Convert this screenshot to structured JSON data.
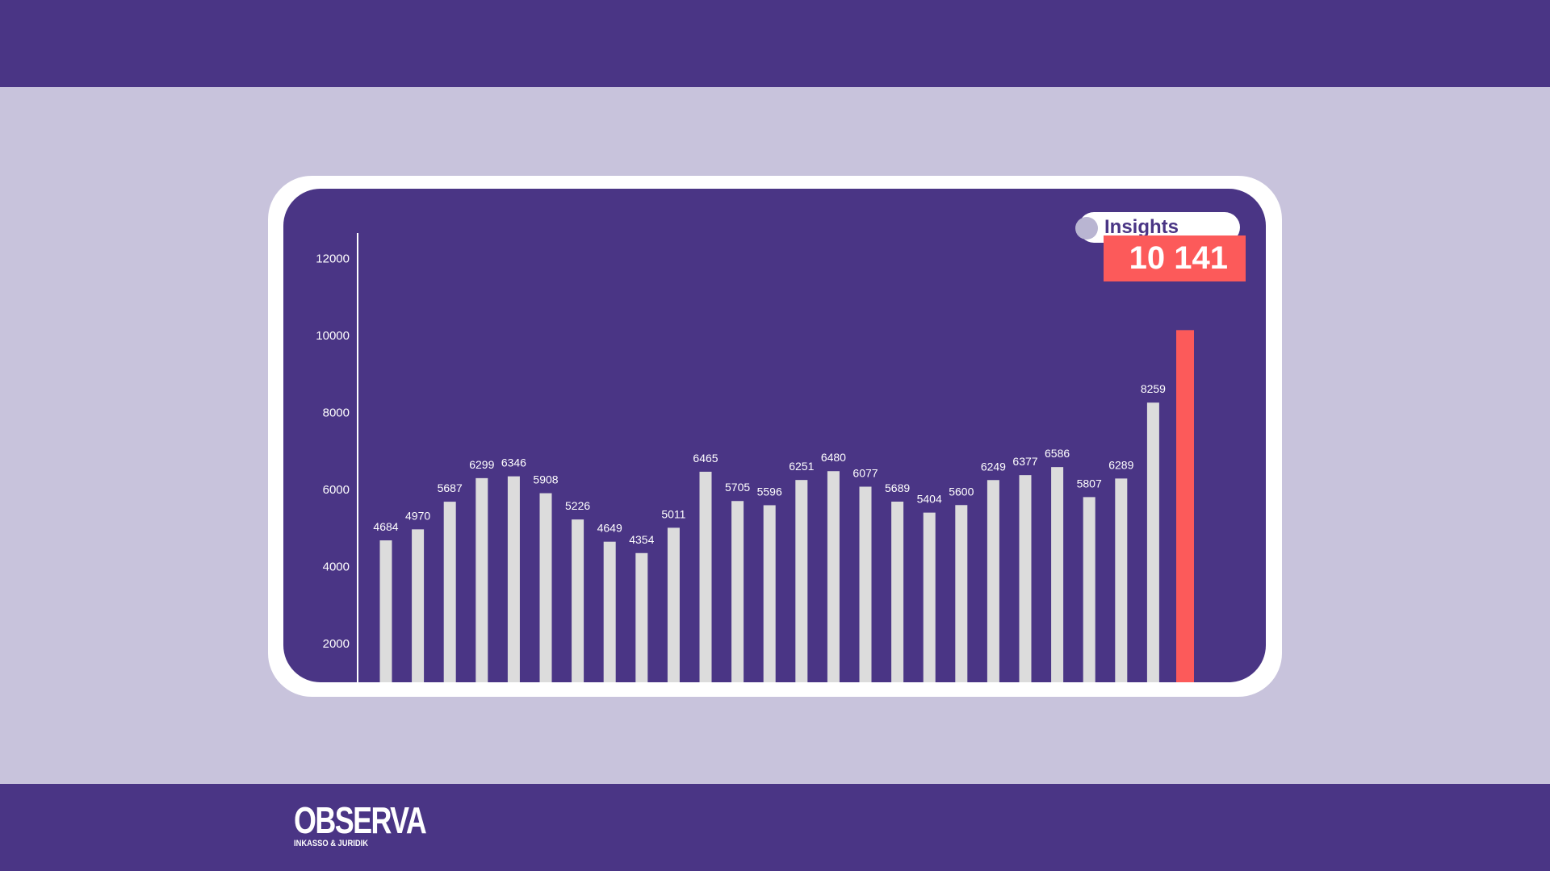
{
  "colors": {
    "band": "#4a3585",
    "background": "#c8c3dc",
    "card": "#ffffff",
    "plot_area": "#4a3585",
    "bar": "#dcdcdc",
    "highlight": "#fc5a5a",
    "text": "#ffffff"
  },
  "insights": {
    "label": "Insights",
    "value": "10 141"
  },
  "logo": {
    "name": "OBSERVA",
    "tagline": "INKASSO & JURIDIK"
  },
  "chart_data": {
    "type": "bar",
    "title": "",
    "xlabel": "",
    "ylabel": "",
    "ylim": [
      1000,
      12700
    ],
    "yticks": [
      2000,
      4000,
      6000,
      8000,
      10000,
      12000
    ],
    "grid": false,
    "legend": "none",
    "values": [
      4684,
      4970,
      5687,
      6299,
      6346,
      5908,
      5226,
      4649,
      4354,
      5011,
      6465,
      5705,
      5596,
      6251,
      6480,
      6077,
      5689,
      5404,
      5600,
      6249,
      6377,
      6586,
      5807,
      6289,
      8259,
      10141
    ],
    "value_labels": [
      "4684",
      "4970",
      "5687",
      "6299",
      "6346",
      "5908",
      "5226",
      "4649",
      "4354",
      "5011",
      "6465",
      "5705",
      "5596",
      "6251",
      "6480",
      "6077",
      "5689",
      "5404",
      "5600",
      "6249",
      "6377",
      "6586",
      "5807",
      "6289",
      "8259",
      ""
    ],
    "highlight_index": 25
  }
}
